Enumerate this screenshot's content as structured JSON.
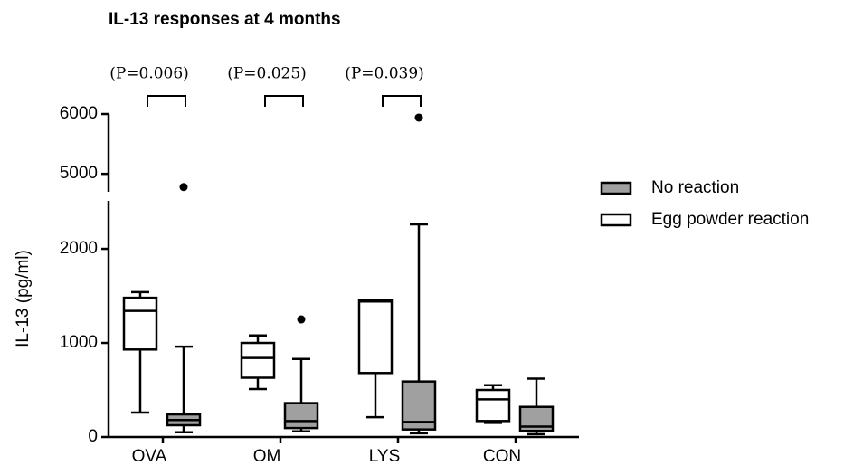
{
  "chart_data": {
    "type": "box",
    "title": "IL-13 responses at 4 months",
    "y_label": "IL-13 (pg/ml)",
    "categories": [
      "OVA",
      "OM",
      "LYS",
      "CON"
    ],
    "annotations": [
      "(P=0.006)",
      "(P=0.025)",
      "(P=0.039)"
    ],
    "y_segments": [
      {
        "ylim": [
          0,
          2510
        ],
        "yticks": [
          0,
          1000,
          2000
        ]
      },
      {
        "ylim": [
          4700,
          6000
        ],
        "yticks": [
          5000,
          6000
        ]
      }
    ],
    "series": [
      {
        "name": "Egg powder reaction",
        "color": "#ffffff",
        "min": [
          260,
          510,
          210,
          150
        ],
        "q1": [
          930,
          630,
          680,
          170
        ],
        "median": [
          1340,
          840,
          1440,
          400
        ],
        "q3": [
          1480,
          1000,
          1450,
          500
        ],
        "max": [
          1540,
          1080,
          1450,
          550
        ]
      },
      {
        "name": "No reaction",
        "color": "#a0a0a0",
        "min": [
          50,
          60,
          40,
          30
        ],
        "q1": [
          125,
          95,
          80,
          65
        ],
        "median": [
          180,
          170,
          160,
          110
        ],
        "q3": [
          240,
          360,
          590,
          320
        ],
        "max": [
          960,
          830,
          2260,
          620
        ],
        "outliers": [
          [
            4780
          ],
          [
            1250
          ],
          [
            5940
          ],
          []
        ]
      }
    ]
  }
}
